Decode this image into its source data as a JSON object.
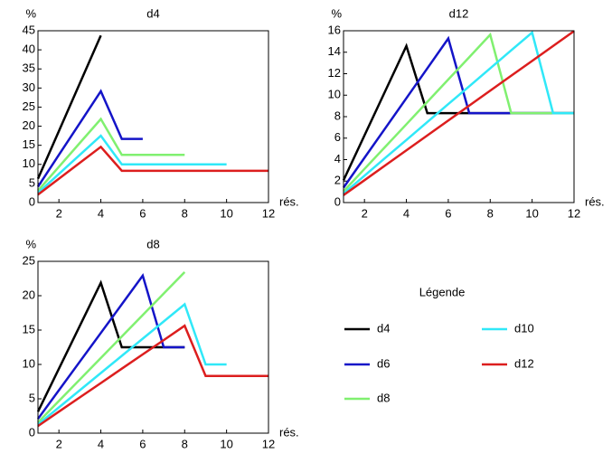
{
  "chart_data": [
    {
      "type": "line",
      "title": "d4",
      "ylabel": "%",
      "xlabel": "rés.",
      "x": [
        1,
        2,
        3,
        4,
        5,
        6,
        7,
        8,
        9,
        10,
        11,
        12
      ],
      "xlim": [
        1,
        12
      ],
      "xticks": [
        2,
        4,
        6,
        8,
        10,
        12
      ],
      "ylim": [
        0,
        45
      ],
      "yticks": [
        0,
        5,
        10,
        15,
        20,
        25,
        30,
        35,
        40,
        45
      ],
      "series": [
        {
          "name": "d4",
          "color": "#000000",
          "values": [
            6.25,
            18.75,
            31.25,
            43.75,
            null,
            null,
            null,
            null,
            null,
            null,
            null,
            null
          ]
        },
        {
          "name": "d6",
          "color": "#1414c8",
          "values": [
            4.17,
            12.5,
            20.83,
            29.17,
            16.67,
            16.67,
            null,
            null,
            null,
            null,
            null,
            null
          ]
        },
        {
          "name": "d8",
          "color": "#80f070",
          "values": [
            3.13,
            9.38,
            15.63,
            21.88,
            12.5,
            12.5,
            12.5,
            12.5,
            null,
            null,
            null,
            null
          ]
        },
        {
          "name": "d10",
          "color": "#30e8f8",
          "values": [
            2.5,
            7.5,
            12.5,
            17.5,
            10,
            10,
            10,
            10,
            10,
            10,
            null,
            null
          ]
        },
        {
          "name": "d12",
          "color": "#dc1e1e",
          "values": [
            2.08,
            6.25,
            10.42,
            14.58,
            8.33,
            8.33,
            8.33,
            8.33,
            8.33,
            8.33,
            8.33,
            8.33
          ]
        }
      ]
    },
    {
      "type": "line",
      "title": "d12",
      "ylabel": "%",
      "xlabel": "rés.",
      "x": [
        1,
        2,
        3,
        4,
        5,
        6,
        7,
        8,
        9,
        10,
        11,
        12
      ],
      "xlim": [
        1,
        12
      ],
      "xticks": [
        2,
        4,
        6,
        8,
        10,
        12
      ],
      "ylim": [
        0,
        16
      ],
      "yticks": [
        0,
        2,
        4,
        6,
        8,
        10,
        12,
        14,
        16
      ],
      "series": [
        {
          "name": "d4",
          "color": "#000000",
          "values": [
            2.08,
            6.25,
            10.42,
            14.58,
            8.33,
            8.33,
            8.33,
            8.33,
            8.33,
            8.33,
            8.33,
            8.33
          ]
        },
        {
          "name": "d6",
          "color": "#1414c8",
          "values": [
            1.39,
            4.17,
            6.94,
            9.72,
            12.5,
            15.28,
            8.33,
            8.33,
            8.33,
            8.33,
            8.33,
            8.33
          ]
        },
        {
          "name": "d8",
          "color": "#80f070",
          "values": [
            1.04,
            3.13,
            5.21,
            7.29,
            9.38,
            11.46,
            13.54,
            15.63,
            8.33,
            8.33,
            8.33,
            8.33
          ]
        },
        {
          "name": "d10",
          "color": "#30e8f8",
          "values": [
            0.83,
            2.5,
            4.17,
            5.83,
            7.5,
            9.17,
            10.83,
            12.5,
            14.17,
            15.83,
            8.33,
            8.33
          ]
        },
        {
          "name": "d12",
          "color": "#dc1e1e",
          "values": [
            0.69,
            2.08,
            3.47,
            4.86,
            6.25,
            7.64,
            9.03,
            10.42,
            11.81,
            13.19,
            14.58,
            15.97
          ]
        }
      ]
    },
    {
      "type": "line",
      "title": "d8",
      "ylabel": "%",
      "xlabel": "rés.",
      "x": [
        1,
        2,
        3,
        4,
        5,
        6,
        7,
        8,
        9,
        10,
        11,
        12
      ],
      "xlim": [
        1,
        12
      ],
      "xticks": [
        2,
        4,
        6,
        8,
        10,
        12
      ],
      "ylim": [
        0,
        25
      ],
      "yticks": [
        0,
        5,
        10,
        15,
        20,
        25
      ],
      "series": [
        {
          "name": "d4",
          "color": "#000000",
          "values": [
            3.13,
            9.38,
            15.63,
            21.88,
            12.5,
            12.5,
            12.5,
            12.5,
            null,
            null,
            null,
            null
          ]
        },
        {
          "name": "d6",
          "color": "#1414c8",
          "values": [
            2.08,
            6.25,
            10.42,
            14.58,
            18.75,
            22.92,
            12.5,
            12.5,
            null,
            null,
            null,
            null
          ]
        },
        {
          "name": "d8",
          "color": "#80f070",
          "values": [
            1.56,
            4.69,
            7.81,
            10.94,
            14.06,
            17.19,
            20.31,
            23.44,
            null,
            null,
            null,
            null
          ]
        },
        {
          "name": "d10",
          "color": "#30e8f8",
          "values": [
            1.25,
            3.75,
            6.25,
            8.75,
            11.25,
            13.75,
            16.25,
            18.75,
            10,
            10,
            null,
            null
          ]
        },
        {
          "name": "d12",
          "color": "#dc1e1e",
          "values": [
            1.04,
            3.13,
            5.21,
            7.29,
            9.38,
            11.46,
            13.54,
            15.63,
            8.33,
            8.33,
            8.33,
            8.33
          ]
        }
      ]
    }
  ],
  "legend": {
    "title": "Légende"
  }
}
